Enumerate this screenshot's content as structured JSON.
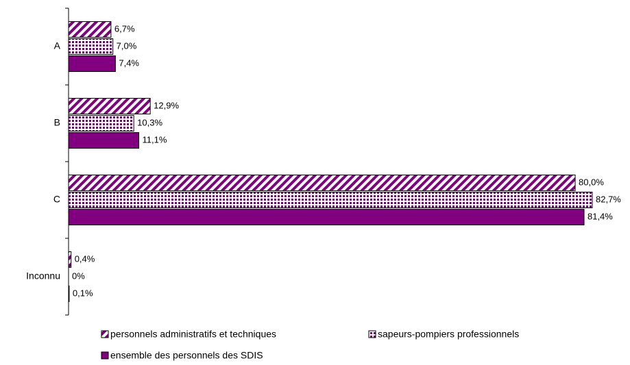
{
  "chart_data": {
    "type": "bar",
    "orientation": "horizontal",
    "categories": [
      "A",
      "B",
      "C",
      "Inconnu"
    ],
    "series": [
      {
        "name": "personnels administratifs et techniques",
        "color": "#800080",
        "pattern": "hatch",
        "values": [
          6.7,
          12.9,
          80.0,
          0.4
        ],
        "value_labels": [
          "6,7%",
          "12,9%",
          "80,0%",
          "0,4%"
        ]
      },
      {
        "name": "sapeurs-pompiers professionnels",
        "color": "#800080",
        "pattern": "dots",
        "values": [
          7.0,
          10.3,
          82.7,
          0
        ],
        "value_labels": [
          "7,0%",
          "10,3%",
          "82,7%",
          "0%"
        ]
      },
      {
        "name": "ensemble des personnels des SDIS",
        "color": "#800080",
        "pattern": "solid",
        "values": [
          7.4,
          11.1,
          81.4,
          0.1
        ],
        "value_labels": [
          "7,4%",
          "11,1%",
          "81,4%",
          "0,1%"
        ]
      }
    ],
    "legend": "bottom"
  }
}
